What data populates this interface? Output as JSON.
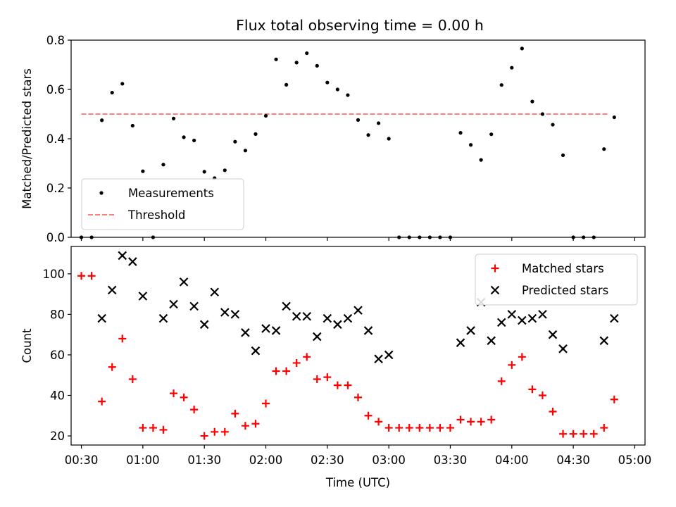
{
  "title": "Flux total observing time = 0.00 h",
  "chart_data": [
    {
      "type": "scatter",
      "ylabel": "Matched/Predicted stars",
      "xlabel": "",
      "xlim": [
        "00:25",
        "05:05"
      ],
      "ylim": [
        0,
        0.8
      ],
      "yticks": [
        "0.0",
        "0.2",
        "0.4",
        "0.6",
        "0.8"
      ],
      "legend_position": "lower-left",
      "legend": [
        "Measurements",
        "Threshold"
      ],
      "threshold": {
        "name": "Threshold",
        "value": 0.5,
        "x_range": [
          "00:30",
          "04:47"
        ],
        "color": "#ff7f7f",
        "style": "dashed"
      },
      "series": [
        {
          "name": "Measurements",
          "marker": "dot",
          "color": "#000000",
          "points": [
            [
              "00:30",
              0.0
            ],
            [
              "00:35",
              0.0
            ],
            [
              "00:40",
              0.475
            ],
            [
              "00:45",
              0.587
            ],
            [
              "00:50",
              0.623
            ],
            [
              "00:55",
              0.453
            ],
            [
              "01:00",
              0.268
            ],
            [
              "01:05",
              0.0
            ],
            [
              "01:10",
              0.295
            ],
            [
              "01:15",
              0.482
            ],
            [
              "01:20",
              0.406
            ],
            [
              "01:25",
              0.393
            ],
            [
              "01:30",
              0.266
            ],
            [
              "01:35",
              0.24
            ],
            [
              "01:40",
              0.272
            ],
            [
              "01:45",
              0.388
            ],
            [
              "01:50",
              0.352
            ],
            [
              "01:55",
              0.419
            ],
            [
              "02:00",
              0.493
            ],
            [
              "02:05",
              0.722
            ],
            [
              "02:10",
              0.619
            ],
            [
              "02:15",
              0.709
            ],
            [
              "02:20",
              0.747
            ],
            [
              "02:25",
              0.696
            ],
            [
              "02:30",
              0.628
            ],
            [
              "02:35",
              0.6
            ],
            [
              "02:40",
              0.577
            ],
            [
              "02:45",
              0.476
            ],
            [
              "02:50",
              0.415
            ],
            [
              "02:55",
              0.463
            ],
            [
              "03:00",
              0.4
            ],
            [
              "03:05",
              0.0
            ],
            [
              "03:10",
              0.0
            ],
            [
              "03:15",
              0.0
            ],
            [
              "03:20",
              0.0
            ],
            [
              "03:25",
              0.0
            ],
            [
              "03:30",
              0.0
            ],
            [
              "03:35",
              0.424
            ],
            [
              "03:40",
              0.375
            ],
            [
              "03:45",
              0.314
            ],
            [
              "03:50",
              0.418
            ],
            [
              "03:55",
              0.618
            ],
            [
              "04:00",
              0.688
            ],
            [
              "04:05",
              0.766
            ],
            [
              "04:10",
              0.551
            ],
            [
              "04:15",
              0.5
            ],
            [
              "04:20",
              0.457
            ],
            [
              "04:25",
              0.333
            ],
            [
              "04:30",
              0.0
            ],
            [
              "04:35",
              0.0
            ],
            [
              "04:40",
              0.0
            ],
            [
              "04:45",
              0.358
            ],
            [
              "04:50",
              0.487
            ]
          ]
        }
      ]
    },
    {
      "type": "scatter",
      "ylabel": "Count",
      "xlabel": "Time (UTC)",
      "xlim": [
        "00:25",
        "05:05"
      ],
      "ylim": [
        15.5,
        113.5
      ],
      "yticks": [
        "20",
        "40",
        "60",
        "80",
        "100"
      ],
      "xticks": [
        "00:30",
        "01:00",
        "01:30",
        "02:00",
        "02:30",
        "03:00",
        "03:30",
        "04:00",
        "04:30",
        "05:00"
      ],
      "legend_position": "upper-right",
      "legend": [
        "Matched stars",
        "Predicted stars"
      ],
      "series": [
        {
          "name": "Matched stars",
          "marker": "plus",
          "color": "#ff0000",
          "points": [
            [
              "00:30",
              99
            ],
            [
              "00:35",
              99
            ],
            [
              "00:40",
              37
            ],
            [
              "00:45",
              54
            ],
            [
              "00:50",
              68
            ],
            [
              "00:55",
              48
            ],
            [
              "01:00",
              24
            ],
            [
              "01:05",
              24
            ],
            [
              "01:10",
              23
            ],
            [
              "01:15",
              41
            ],
            [
              "01:20",
              39
            ],
            [
              "01:25",
              33
            ],
            [
              "01:30",
              20
            ],
            [
              "01:35",
              22
            ],
            [
              "01:40",
              22
            ],
            [
              "01:45",
              31
            ],
            [
              "01:50",
              25
            ],
            [
              "01:55",
              26
            ],
            [
              "02:00",
              36
            ],
            [
              "02:05",
              52
            ],
            [
              "02:10",
              52
            ],
            [
              "02:15",
              56
            ],
            [
              "02:20",
              59
            ],
            [
              "02:25",
              48
            ],
            [
              "02:30",
              49
            ],
            [
              "02:35",
              45
            ],
            [
              "02:40",
              45
            ],
            [
              "02:45",
              39
            ],
            [
              "02:50",
              30
            ],
            [
              "02:55",
              27
            ],
            [
              "03:00",
              24
            ],
            [
              "03:05",
              24
            ],
            [
              "03:10",
              24
            ],
            [
              "03:15",
              24
            ],
            [
              "03:20",
              24
            ],
            [
              "03:25",
              24
            ],
            [
              "03:30",
              24
            ],
            [
              "03:35",
              28
            ],
            [
              "03:40",
              27
            ],
            [
              "03:45",
              27
            ],
            [
              "03:50",
              28
            ],
            [
              "03:55",
              47
            ],
            [
              "04:00",
              55
            ],
            [
              "04:05",
              59
            ],
            [
              "04:10",
              43
            ],
            [
              "04:15",
              40
            ],
            [
              "04:20",
              32
            ],
            [
              "04:25",
              21
            ],
            [
              "04:30",
              21
            ],
            [
              "04:35",
              21
            ],
            [
              "04:40",
              21
            ],
            [
              "04:45",
              24
            ],
            [
              "04:50",
              38
            ]
          ]
        },
        {
          "name": "Predicted stars",
          "marker": "x",
          "color": "#000000",
          "points": [
            [
              "00:40",
              78
            ],
            [
              "00:45",
              92
            ],
            [
              "00:50",
              109
            ],
            [
              "00:55",
              106
            ],
            [
              "01:00",
              89
            ],
            [
              "01:10",
              78
            ],
            [
              "01:15",
              85
            ],
            [
              "01:20",
              96
            ],
            [
              "01:25",
              84
            ],
            [
              "01:30",
              75
            ],
            [
              "01:35",
              91
            ],
            [
              "01:40",
              81
            ],
            [
              "01:45",
              80
            ],
            [
              "01:50",
              71
            ],
            [
              "01:55",
              62
            ],
            [
              "02:00",
              73
            ],
            [
              "02:05",
              72
            ],
            [
              "02:10",
              84
            ],
            [
              "02:15",
              79
            ],
            [
              "02:20",
              79
            ],
            [
              "02:25",
              69
            ],
            [
              "02:30",
              78
            ],
            [
              "02:35",
              75
            ],
            [
              "02:40",
              78
            ],
            [
              "02:45",
              82
            ],
            [
              "02:50",
              72
            ],
            [
              "02:55",
              58
            ],
            [
              "03:00",
              60
            ],
            [
              "03:35",
              66
            ],
            [
              "03:40",
              72
            ],
            [
              "03:45",
              86
            ],
            [
              "03:50",
              67
            ],
            [
              "03:55",
              76
            ],
            [
              "04:00",
              80
            ],
            [
              "04:05",
              77
            ],
            [
              "04:10",
              78
            ],
            [
              "04:15",
              80
            ],
            [
              "04:20",
              70
            ],
            [
              "04:25",
              63
            ],
            [
              "04:45",
              67
            ],
            [
              "04:50",
              78
            ]
          ]
        }
      ]
    }
  ]
}
